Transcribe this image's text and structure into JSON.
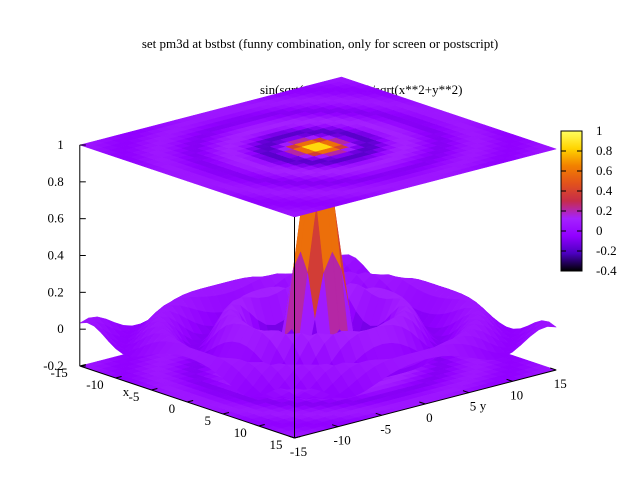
{
  "chart_data": {
    "type": "surface-3d",
    "title": "set pm3d at bstbst (funny combination, only for screen or postscript)",
    "series": [
      {
        "name": "sin(sqrt(x**2+y**2))/sqrt(x**2+y**2)"
      }
    ],
    "function": "sin(sqrt(x**2+y**2))/sqrt(x**2+y**2)",
    "xlabel": "x",
    "ylabel": "y",
    "xlim": [
      -15,
      15
    ],
    "ylim": [
      -15,
      15
    ],
    "zlim": [
      -0.2,
      1
    ],
    "cblim": [
      -0.4,
      1
    ],
    "x_ticks": [
      "-15",
      "-10",
      "-5",
      "0",
      "5",
      "10",
      "15"
    ],
    "y_ticks": [
      "-15",
      "-10",
      "-5",
      "0",
      "5",
      "10",
      "15"
    ],
    "z_ticks": [
      "-0.2",
      "0",
      "0.2",
      "0.4",
      "0.6",
      "0.8",
      "1"
    ],
    "cb_ticks": [
      "-0.4",
      "-0.2",
      "0",
      "0.2",
      "0.4",
      "0.6",
      "0.8",
      "1"
    ],
    "pm3d": "at bstbst",
    "palette": [
      "#000000",
      "#4b00bf",
      "#9100ff",
      "#a522ff",
      "#c62c4a",
      "#e2521c",
      "#f28000",
      "#ffd400",
      "#ffff60"
    ],
    "grid": false,
    "legend": "top-right"
  }
}
